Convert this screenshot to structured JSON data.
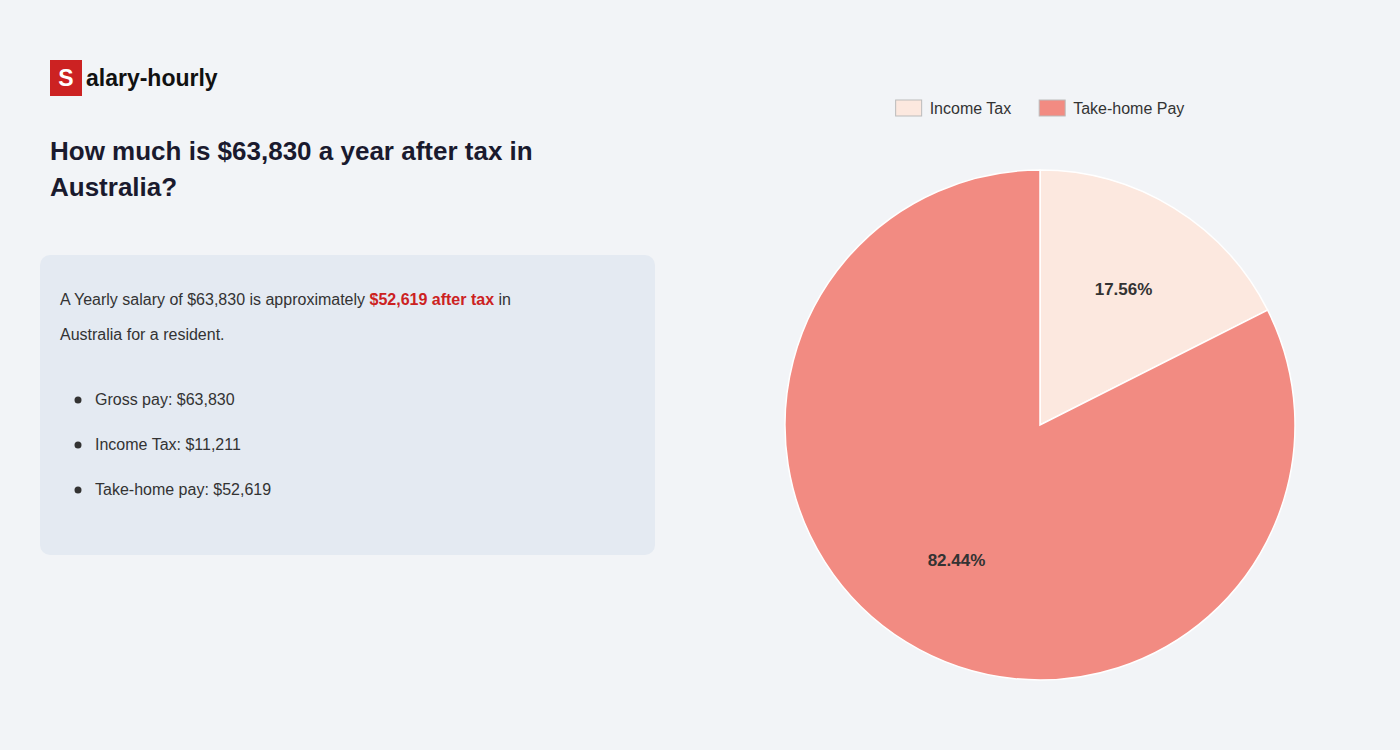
{
  "chart_data": {
    "type": "pie",
    "title": "How much is $63,830 a year after tax in Australia?",
    "categories": [
      "Income Tax",
      "Take-home Pay"
    ],
    "values": [
      17.56,
      82.44
    ],
    "value_labels": [
      "17.56%",
      "82.44%"
    ],
    "colors": [
      "#fce8df",
      "#f28b82"
    ],
    "data_labels": true,
    "legend": "top",
    "annotations": [
      {
        "text": "S",
        "color": "#cc2222"
      },
      {
        "text": "alary-hourly"
      },
      {
        "text": "A Yearly salary of $63,830 is approximately "
      },
      {
        "text": "$52,619 after tax",
        "color": "#cc2222"
      },
      {
        "text": " in"
      },
      {
        "text": "Australia for a resident."
      },
      {
        "text": "Gross pay: $63,830"
      },
      {
        "text": "Income Tax: $11,211"
      },
      {
        "text": "Take-home pay: $52,619"
      }
    ]
  }
}
